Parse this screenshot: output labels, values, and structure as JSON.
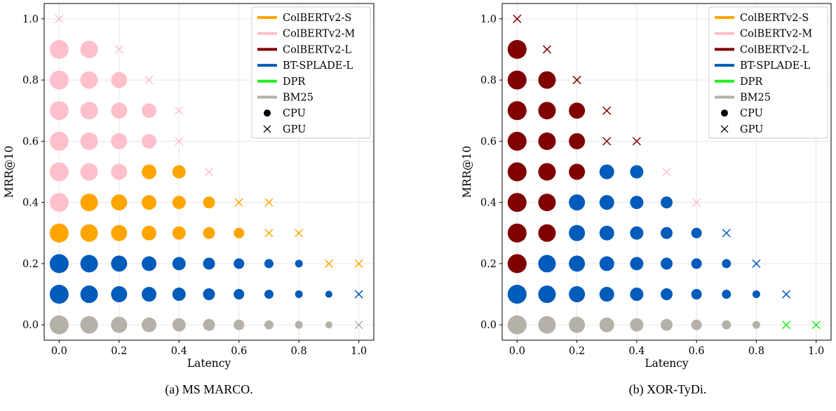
{
  "series_styles": [
    {
      "name": "ColBERTv2-S",
      "color": "#FFA500"
    },
    {
      "name": "ColBERTv2-M",
      "color": "#FFC0CB"
    },
    {
      "name": "ColBERTv2-L",
      "color": "#800000"
    },
    {
      "name": "BT-SPLADE-L",
      "color": "#005BBB"
    },
    {
      "name": "DPR",
      "color": "#22EE22"
    },
    {
      "name": "BM25",
      "color": "#B5B0A8"
    }
  ],
  "marker_legend": [
    {
      "label": "CPU",
      "marker": "circle"
    },
    {
      "label": "GPU",
      "marker": "x"
    }
  ],
  "chart_data": [
    {
      "type": "scatter",
      "caption": "(a) MS MARCO.",
      "xlabel": "Latency",
      "ylabel": "MRR@10",
      "xlim": [
        -0.05,
        1.05
      ],
      "ylim": [
        -0.05,
        1.05
      ],
      "xticks": [
        0.0,
        0.2,
        0.4,
        0.6,
        0.8,
        1.0
      ],
      "yticks": [
        0.0,
        0.2,
        0.4,
        0.6,
        0.8,
        1.0
      ],
      "grid": true,
      "legend": "top-right",
      "rows": [
        "PPPPPPPPPPG",
        "BBBBBBBBBBG",
        "BBBBBBBBBGx",
        "OOOOOOOGG",
        "MOOOOOGG",
        "MMMOOG",
        "MMMMG",
        "MMMMG",
        "MMMG",
        "MMG",
        "M"
      ],
      "row_codes": {
        "O": "ColBERTv2-S",
        "M": "ColBERTv2-M",
        "L": "ColBERTv2-L",
        "B": "BT-SPLADE-L",
        "D": "DPR",
        "P": "BM25"
      },
      "gpu_overrides": {
        "0": "BM25",
        "1": "BT-SPLADE-L",
        "2": "ColBERTv2-S",
        "3": "ColBERTv2-S",
        "4": "ColBERTv2-S",
        "5": "ColBERTv2-M",
        "6": "ColBERTv2-M",
        "7": "ColBERTv2-M",
        "8": "ColBERTv2-M",
        "9": "ColBERTv2-M"
      }
    },
    {
      "type": "scatter",
      "caption": "(b) XOR-TyDi.",
      "xlabel": "Latency",
      "ylabel": "MRR@10",
      "xlim": [
        -0.05,
        1.05
      ],
      "ylim": [
        -0.05,
        1.05
      ],
      "xticks": [
        0.0,
        0.2,
        0.4,
        0.6,
        0.8,
        1.0
      ],
      "yticks": [
        0.0,
        0.2,
        0.4,
        0.6,
        0.8,
        1.0
      ],
      "grid": true,
      "legend": "top-right",
      "rows": [
        "PPPPPPPPPGG",
        "BBBBBBBBBG",
        "LBBBBBBBG",
        "LLBBBBBG",
        "LLBBBBG",
        "LLLBBG",
        "LLLGG",
        "LLLG",
        "LLG",
        "LG",
        "G"
      ],
      "row_codes": {
        "O": "ColBERTv2-S",
        "M": "ColBERTv2-M",
        "L": "ColBERTv2-L",
        "B": "BT-SPLADE-L",
        "D": "DPR",
        "P": "BM25"
      },
      "gpu_overrides": {
        "0": "DPR",
        "1": "BT-SPLADE-L",
        "2": "BT-SPLADE-L",
        "3": "BT-SPLADE-L",
        "4": "ColBERTv2-M",
        "5": "ColBERTv2-M",
        "6": "ColBERTv2-L",
        "7": "ColBERTv2-L",
        "8": "ColBERTv2-L",
        "9": "ColBERTv2-L",
        "10": "ColBERTv2-L"
      }
    }
  ]
}
